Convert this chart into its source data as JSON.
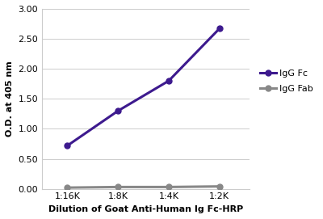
{
  "x_labels": [
    "1:16K",
    "1:8K",
    "1:4K",
    "1:2K"
  ],
  "x_values": [
    1,
    2,
    3,
    4
  ],
  "igg_fc_values": [
    0.72,
    1.3,
    1.8,
    2.67
  ],
  "igg_fab_values": [
    0.02,
    0.03,
    0.03,
    0.04
  ],
  "igg_fc_color": "#3d1a8e",
  "igg_fab_color": "#888888",
  "xlabel": "Dilution of Goat Anti-Human Ig Fc-HRP",
  "ylabel": "O.D. at 405 nm",
  "ylim": [
    0.0,
    3.0
  ],
  "yticks": [
    0.0,
    0.5,
    1.0,
    1.5,
    2.0,
    2.5,
    3.0
  ],
  "legend_fc_label": "IgG Fc",
  "legend_fab_label": "IgG Fab",
  "marker": "o",
  "marker_size": 5,
  "line_width": 2.2,
  "bg_color": "#ffffff",
  "plot_bg_color": "#ffffff",
  "grid_color": "#cccccc",
  "xlabel_fontsize": 8,
  "ylabel_fontsize": 8,
  "tick_fontsize": 8,
  "legend_fontsize": 8,
  "xlim": [
    0.5,
    4.6
  ]
}
